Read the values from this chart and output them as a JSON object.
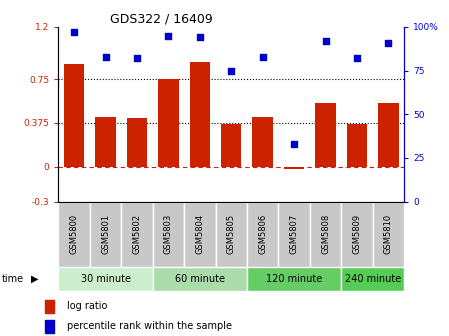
{
  "title": "GDS322 / 16409",
  "samples": [
    "GSM5800",
    "GSM5801",
    "GSM5802",
    "GSM5803",
    "GSM5804",
    "GSM5805",
    "GSM5806",
    "GSM5807",
    "GSM5808",
    "GSM5809",
    "GSM5810"
  ],
  "log_ratio": [
    0.88,
    0.43,
    0.42,
    0.75,
    0.9,
    0.37,
    0.43,
    -0.02,
    0.55,
    0.37,
    0.55
  ],
  "percentile": [
    97,
    83,
    82,
    95,
    94,
    75,
    83,
    33,
    92,
    82,
    91
  ],
  "bar_color": "#cc2200",
  "dot_color": "#0000cc",
  "ylim_left": [
    -0.3,
    1.2
  ],
  "ylim_right": [
    0,
    100
  ],
  "yticks_left": [
    -0.3,
    0,
    0.375,
    0.75,
    1.2
  ],
  "ytick_labels_left": [
    "-0.3",
    "0",
    "0.375",
    "0.75",
    "1.2"
  ],
  "yticks_right": [
    0,
    25,
    50,
    75,
    100
  ],
  "ytick_labels_right": [
    "0",
    "25",
    "50",
    "75",
    "100%"
  ],
  "hlines": [
    0.75,
    0.375
  ],
  "zero_line": 0,
  "group_data": [
    {
      "start": 0,
      "end": 2,
      "label": "30 minute",
      "color": "#cceecc"
    },
    {
      "start": 3,
      "end": 5,
      "label": "60 minute",
      "color": "#aaddaa"
    },
    {
      "start": 6,
      "end": 8,
      "label": "120 minute",
      "color": "#66cc66"
    },
    {
      "start": 9,
      "end": 10,
      "label": "240 minute",
      "color": "#55cc55"
    }
  ],
  "time_label": "time",
  "legend_log": "log ratio",
  "legend_pct": "percentile rank within the sample",
  "tick_area_bg": "#c8c8c8"
}
